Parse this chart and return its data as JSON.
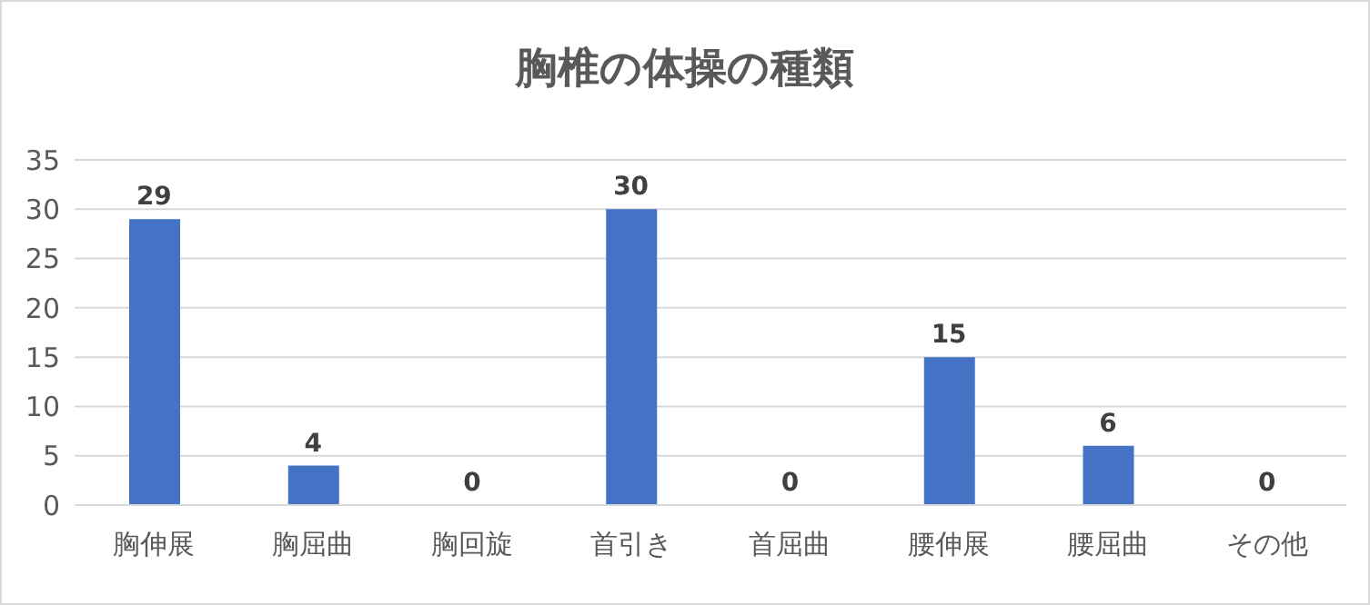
{
  "chart_data": {
    "type": "bar",
    "title": "胸椎の体操の種類",
    "categories": [
      "胸伸展",
      "胸屈曲",
      "胸回旋",
      "首引き",
      "首屈曲",
      "腰伸展",
      "腰屈曲",
      "その他"
    ],
    "values": [
      29,
      4,
      0,
      30,
      0,
      15,
      6,
      0
    ],
    "color": "#4472c4",
    "ylim": [
      0,
      35
    ],
    "yticks": [
      0,
      5,
      10,
      15,
      20,
      25,
      30,
      35
    ],
    "grid": "y",
    "data_labels": true,
    "legend": false
  }
}
